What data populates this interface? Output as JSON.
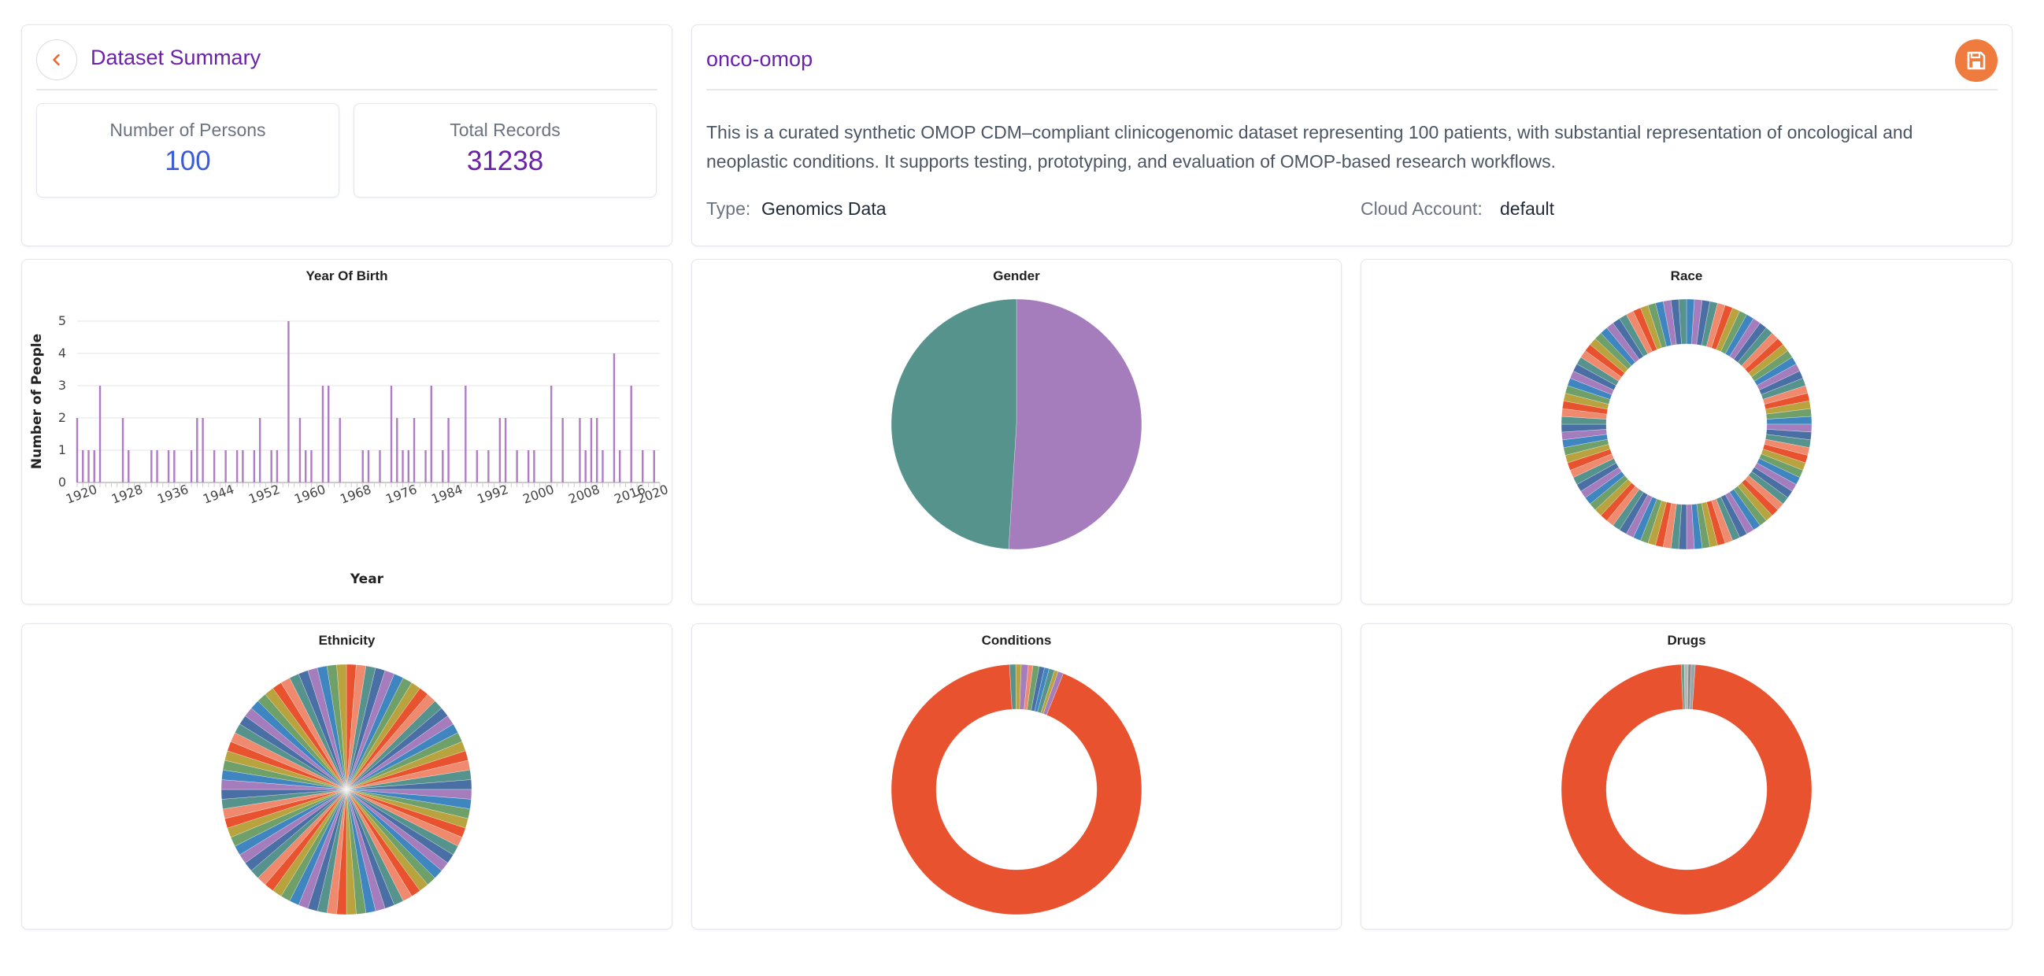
{
  "summary": {
    "title": "Dataset Summary",
    "persons_label": "Number of Persons",
    "persons_value": "100",
    "records_label": "Total Records",
    "records_value": "31238"
  },
  "dataset": {
    "name": "onco-omop",
    "description": "This is a curated synthetic OMOP CDM–compliant clinicogenomic dataset representing 100 patients, with substantial representation of oncological and neoplastic conditions. It supports testing, prototyping, and evaluation of OMOP-based research workflows.",
    "type_label": "Type:",
    "type_value": "Genomics Data",
    "cloud_label": "Cloud Account:",
    "cloud_value": "default"
  },
  "icons": {
    "back": "chevron-left-icon",
    "save": "floppy-disk-icon"
  },
  "colors": {
    "accent_purple": "#6b21a8",
    "persons_blue": "#3b5bdb",
    "records_purple": "#6b21a8",
    "save_orange": "#f07b3f",
    "bar_purple": "#b07cc6",
    "gender_teal": "#56938d",
    "gender_purple": "#a57dbd",
    "dominant_red": "#e8522e",
    "palette": [
      "#e8522e",
      "#3f85c0",
      "#56938d",
      "#b8a33e",
      "#a57dbd",
      "#f08a6e",
      "#6fa06a",
      "#4a6fa5"
    ]
  },
  "chart_data": [
    {
      "type": "bar",
      "title": "Year Of Birth",
      "xlabel": "Year",
      "ylabel": "Number of People",
      "ylim": [
        0,
        5
      ],
      "yticks": [
        "0",
        "1",
        "2",
        "3",
        "4",
        "5"
      ],
      "xticks": [
        "1920",
        "1928",
        "1936",
        "1944",
        "1952",
        "1960",
        "1968",
        "1976",
        "1984",
        "1992",
        "2000",
        "2008",
        "2016",
        "2020"
      ],
      "xlim": [
        1919,
        2021
      ],
      "x": [
        1919,
        1920,
        1921,
        1922,
        1923,
        1927,
        1928,
        1932,
        1933,
        1935,
        1936,
        1939,
        1940,
        1941,
        1943,
        1945,
        1947,
        1948,
        1950,
        1951,
        1953,
        1954,
        1956,
        1958,
        1959,
        1960,
        1962,
        1963,
        1965,
        1969,
        1970,
        1972,
        1974,
        1975,
        1976,
        1977,
        1978,
        1980,
        1981,
        1983,
        1984,
        1987,
        1989,
        1991,
        1993,
        1994,
        1996,
        1998,
        1999,
        2002,
        2004,
        2007,
        2008,
        2009,
        2010,
        2011,
        2013,
        2014,
        2016,
        2018,
        2020
      ],
      "values": [
        2,
        1,
        1,
        1,
        3,
        2,
        1,
        1,
        1,
        1,
        1,
        1,
        2,
        2,
        1,
        1,
        1,
        1,
        1,
        2,
        1,
        1,
        5,
        2,
        1,
        1,
        3,
        3,
        2,
        1,
        1,
        1,
        3,
        2,
        1,
        1,
        2,
        1,
        3,
        1,
        2,
        3,
        1,
        1,
        2,
        2,
        1,
        1,
        1,
        3,
        2,
        2,
        1,
        2,
        2,
        1,
        4,
        1,
        3,
        1,
        1
      ]
    },
    {
      "type": "pie",
      "title": "Gender",
      "values": [
        51,
        49
      ],
      "colors": [
        "#a57dbd",
        "#56938d"
      ]
    },
    {
      "type": "pie",
      "title": "Race",
      "donut": true,
      "values": [
        1,
        1,
        1,
        1,
        1,
        1,
        1,
        1,
        1,
        1,
        1,
        1,
        1,
        1,
        1,
        1,
        1,
        1,
        1,
        1,
        1,
        1,
        1,
        1,
        1,
        1,
        1,
        1,
        1,
        1,
        1,
        1,
        1,
        1,
        1,
        1,
        1,
        1,
        1,
        1,
        1,
        1,
        1,
        1,
        1,
        1,
        1,
        1,
        1,
        1,
        1,
        1,
        1,
        1,
        1,
        1,
        1,
        1,
        1,
        1,
        1,
        1,
        1,
        1,
        1,
        1,
        1,
        1,
        1,
        1,
        1,
        1,
        1,
        1,
        1,
        1,
        1,
        1,
        1,
        1,
        1,
        1,
        1,
        1,
        1,
        1,
        1,
        1,
        1,
        1,
        1,
        1,
        1,
        1,
        1,
        1,
        1,
        1,
        1,
        1
      ]
    },
    {
      "type": "pie",
      "title": "Ethnicity",
      "values": [
        1,
        1,
        1,
        1,
        1,
        1,
        1,
        1,
        1,
        1,
        1,
        1,
        1,
        1,
        1,
        1,
        1,
        1,
        1,
        1,
        1,
        1,
        1,
        1,
        1,
        1,
        1,
        1,
        1,
        1,
        1,
        1,
        1,
        1,
        1,
        1,
        1,
        1,
        1,
        1,
        1,
        1,
        1,
        1,
        1,
        1,
        1,
        1,
        1,
        1,
        1,
        1,
        1,
        1,
        1,
        1,
        1,
        1,
        1,
        1,
        1,
        1,
        1,
        1,
        1,
        1,
        1,
        1,
        1,
        1,
        1,
        1,
        1,
        1,
        1,
        1,
        1,
        1,
        1,
        1
      ]
    },
    {
      "type": "pie",
      "title": "Conditions",
      "donut": true,
      "values": [
        93,
        0.8,
        0.7,
        0.9,
        0.6,
        0.8,
        0.7,
        0.6,
        0.7,
        0.5,
        0.7
      ]
    },
    {
      "type": "pie",
      "title": "Drugs",
      "donut": true,
      "values": [
        98.2,
        0.4,
        0.5,
        0.4,
        0.5
      ]
    }
  ]
}
